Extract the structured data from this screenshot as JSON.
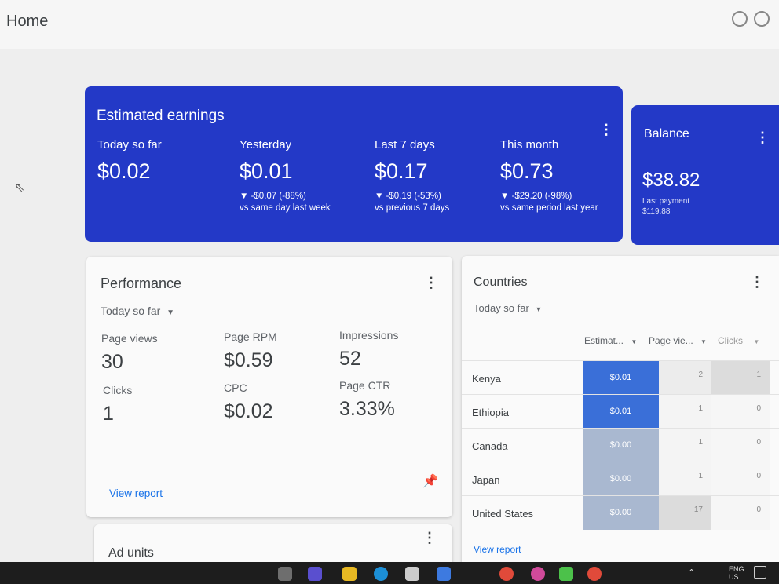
{
  "page": {
    "title": "Home"
  },
  "earnings": {
    "title": "Estimated earnings",
    "metrics": [
      {
        "label": "Today so far",
        "value": "$0.02",
        "change": "",
        "comparison": ""
      },
      {
        "label": "Yesterday",
        "value": "$0.01",
        "change": "▼ -$0.07 (-88%)",
        "comparison": "vs same day last week"
      },
      {
        "label": "Last 7 days",
        "value": "$0.17",
        "change": "▼ -$0.19 (-53%)",
        "comparison": "vs previous 7 days"
      },
      {
        "label": "This month",
        "value": "$0.73",
        "change": "▼ -$29.20 (-98%)",
        "comparison": "vs same period last year"
      }
    ]
  },
  "balance": {
    "title": "Balance",
    "amount": "$38.82",
    "last_payment_label": "Last payment",
    "last_payment_value": "$119.88"
  },
  "performance": {
    "title": "Performance",
    "range": "Today so far",
    "metrics": [
      {
        "label": "Page views",
        "value": "30"
      },
      {
        "label": "Page RPM",
        "value": "$0.59"
      },
      {
        "label": "Impressions",
        "value": "52"
      },
      {
        "label": "Clicks",
        "value": "1"
      },
      {
        "label": "CPC",
        "value": "$0.02"
      },
      {
        "label": "Page CTR",
        "value": "3.33%"
      }
    ],
    "link": "View report"
  },
  "countries": {
    "title": "Countries",
    "range": "Today so far",
    "columns": [
      "Estimat...",
      "Page vie...",
      "Clicks"
    ],
    "rows": [
      {
        "country": "Kenya",
        "earnings": "$0.01",
        "page_views": "2",
        "clicks": "1"
      },
      {
        "country": "Ethiopia",
        "earnings": "$0.01",
        "page_views": "1",
        "clicks": "0"
      },
      {
        "country": "Canada",
        "earnings": "$0.00",
        "page_views": "1",
        "clicks": "0"
      },
      {
        "country": "Japan",
        "earnings": "$0.00",
        "page_views": "1",
        "clicks": "0"
      },
      {
        "country": "United States",
        "earnings": "$0.00",
        "page_views": "17",
        "clicks": "0"
      }
    ],
    "link": "View report"
  },
  "ad_units": {
    "title": "Ad units"
  },
  "taskbar": {
    "lang": "ENG",
    "region": "US"
  },
  "icons": {
    "kebab": "more-vert-icon",
    "dropdown": "caret-down-icon",
    "pin": "pin-icon",
    "cursor": "mouse-pointer-icon"
  },
  "colors": {
    "header_card": "#2339c7",
    "link": "#1a73e8",
    "heat_high": "#3a6fd8",
    "heat_low": "#a9b8d0"
  }
}
